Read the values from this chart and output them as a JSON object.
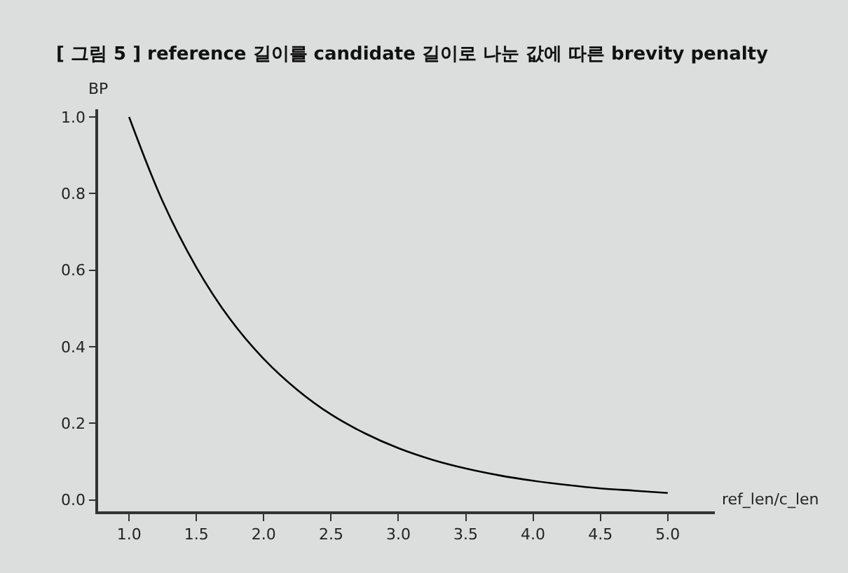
{
  "chart_data": {
    "type": "line",
    "title": "[ 그림 5 ] reference 길이를 candidate 길이로 나눈 값에 따른 brevity penalty",
    "xlabel": "ref_len/c_len",
    "ylabel": "BP",
    "x": [
      1,
      1.25,
      1.5,
      1.75,
      2,
      2.25,
      2.5,
      2.75,
      3,
      3.25,
      3.5,
      3.75,
      4,
      4.25,
      4.5,
      4.75,
      5
    ],
    "series": [
      {
        "color": "#000000",
        "values": [
          1.0,
          0.779,
          0.607,
          0.472,
          0.368,
          0.287,
          0.223,
          0.174,
          0.135,
          0.105,
          0.082,
          0.064,
          0.05,
          0.039,
          0.03,
          0.024,
          0.018
        ]
      }
    ],
    "xlim": [
      0.77,
      5.35
    ],
    "ylim": [
      -0.03,
      1.02
    ],
    "xticks": [
      {
        "value": 1,
        "label": "1.0"
      },
      {
        "value": 1.5,
        "label": "1.5"
      },
      {
        "value": 2,
        "label": "2.0"
      },
      {
        "value": 2.5,
        "label": "2.5"
      },
      {
        "value": 3,
        "label": "3.0"
      },
      {
        "value": 3.5,
        "label": "3.5"
      },
      {
        "value": 4,
        "label": "4.0"
      },
      {
        "value": 4.5,
        "label": "4.5"
      },
      {
        "value": 5,
        "label": "5.0"
      }
    ],
    "yticks": [
      {
        "value": 0,
        "label": "0.0"
      },
      {
        "value": 0.2,
        "label": "0.2"
      },
      {
        "value": 0.4,
        "label": "0.4"
      },
      {
        "value": 0.6,
        "label": "0.6"
      },
      {
        "value": 0.8,
        "label": "0.8"
      },
      {
        "value": 1,
        "label": "1.0"
      }
    ],
    "grid": false,
    "legend": false,
    "marker": "none",
    "line_style": "solid"
  }
}
